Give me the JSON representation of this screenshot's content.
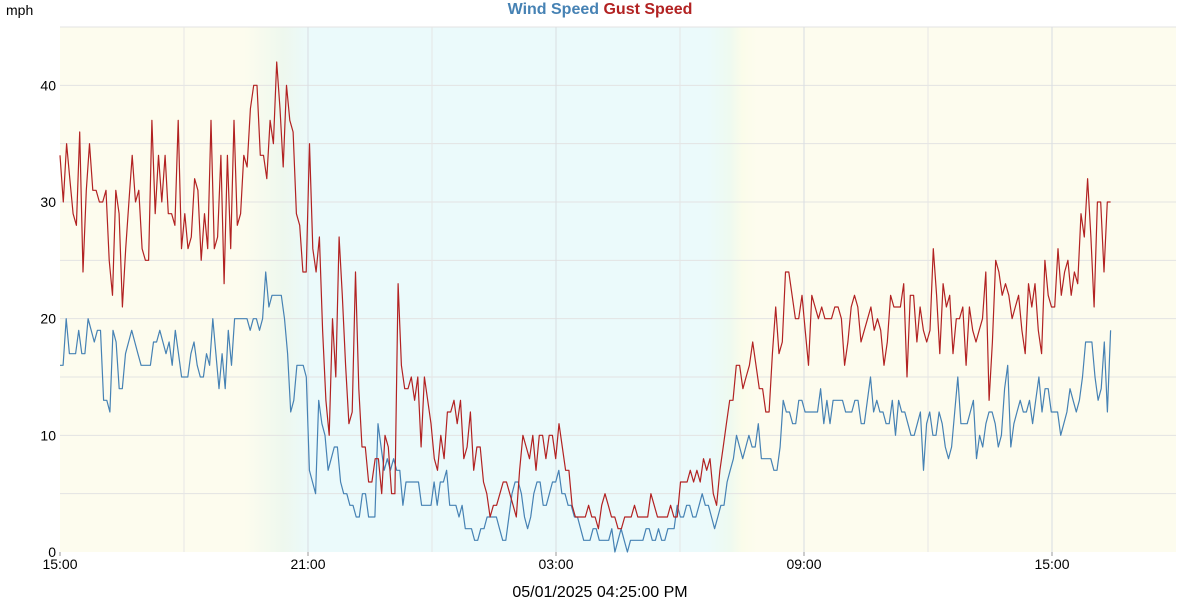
{
  "chart_data": {
    "type": "line",
    "legend": "top-center",
    "ylabel": "mph",
    "footer": "05/01/2025 04:25:00 PM",
    "x_range_hours": [
      0,
      27
    ],
    "ylim": [
      0,
      45
    ],
    "x_ticks": [
      {
        "h": 0,
        "label": "15:00"
      },
      {
        "h": 6,
        "label": "21:00"
      },
      {
        "h": 12,
        "label": "03:00"
      },
      {
        "h": 18,
        "label": "09:00"
      },
      {
        "h": 24,
        "label": "15:00"
      }
    ],
    "y_ticks": [
      0,
      10,
      20,
      30,
      40
    ],
    "grid": true,
    "series": [
      {
        "name": "Wind Speed",
        "color": "#4682b4",
        "values": [
          16,
          16,
          20,
          17,
          17,
          17,
          19,
          17,
          17,
          20,
          19,
          18,
          19,
          19,
          13,
          13,
          12,
          19,
          18,
          14,
          14,
          17,
          18,
          19,
          18,
          17,
          16,
          16,
          16,
          16,
          18,
          18,
          19,
          18,
          17,
          18,
          16,
          19,
          17,
          15,
          15,
          15,
          17,
          18,
          16,
          15,
          15,
          17,
          16,
          20,
          17,
          14,
          17,
          14,
          19,
          16,
          20,
          20,
          20,
          20,
          20,
          19,
          20,
          20,
          19,
          20,
          24,
          21,
          22,
          22,
          22,
          22,
          20,
          17,
          12,
          13,
          16,
          16,
          16,
          15,
          7,
          6,
          5,
          13,
          11,
          10,
          7,
          8,
          9,
          9,
          6,
          5,
          5,
          4,
          4,
          3,
          3,
          5,
          5,
          3,
          3,
          3,
          11,
          9,
          7,
          8,
          7,
          8,
          7,
          7,
          4,
          6,
          6,
          6,
          6,
          6,
          4,
          4,
          4,
          4,
          6,
          4,
          6,
          6,
          7,
          4,
          4,
          4,
          3,
          4,
          2,
          2,
          2,
          1,
          1,
          2,
          2,
          3,
          3,
          3,
          3,
          2,
          1,
          1,
          3,
          5,
          6,
          6,
          5,
          3,
          2,
          3,
          5,
          6,
          6,
          4,
          4,
          5,
          6,
          6,
          7,
          5,
          5,
          4,
          4,
          3,
          3,
          2,
          1,
          1,
          1,
          2,
          2,
          1,
          1,
          1,
          1,
          2,
          0,
          1,
          2,
          1,
          0,
          1,
          1,
          1,
          1,
          1,
          2,
          2,
          1,
          1,
          2,
          1,
          1,
          2,
          2,
          2,
          4,
          3,
          3,
          4,
          4,
          3,
          3,
          4,
          5,
          4,
          4,
          3,
          2,
          3,
          4,
          4,
          6,
          7,
          8,
          10,
          9,
          8,
          9,
          10,
          9,
          9,
          11,
          8,
          8,
          8,
          8,
          7,
          7,
          9,
          13,
          12,
          12,
          11,
          11,
          13,
          13,
          12,
          12,
          12,
          12,
          12,
          14,
          11,
          13,
          11,
          13,
          13,
          13,
          13,
          12,
          12,
          12,
          13,
          13,
          11,
          11,
          13,
          15,
          12,
          13,
          12,
          12,
          11,
          11,
          13,
          10,
          13,
          12,
          12,
          11,
          10,
          10,
          11,
          12,
          7,
          11,
          12,
          10,
          10,
          12,
          11,
          9,
          8,
          9,
          12,
          15,
          11,
          11,
          11,
          12,
          13,
          8,
          10,
          9,
          11,
          12,
          12,
          11,
          9,
          10,
          14,
          16,
          9,
          11,
          12,
          13,
          12,
          12,
          13,
          11,
          13,
          15,
          12,
          14,
          14,
          12,
          12,
          12,
          10,
          11,
          12,
          14,
          13,
          12,
          13,
          15,
          18,
          18,
          18,
          15,
          13,
          14,
          18,
          12,
          19
        ]
      },
      {
        "name": "Gust Speed",
        "color": "#b22222",
        "values": [
          34,
          30,
          35,
          32,
          29,
          28,
          36,
          24,
          31,
          35,
          31,
          31,
          30,
          30,
          31,
          25,
          22,
          31,
          29,
          21,
          26,
          30,
          34,
          30,
          31,
          26,
          25,
          25,
          37,
          29,
          34,
          30,
          34,
          29,
          29,
          28,
          37,
          26,
          29,
          26,
          27,
          32,
          31,
          25,
          29,
          26,
          37,
          26,
          27,
          34,
          23,
          34,
          26,
          37,
          28,
          29,
          34,
          33,
          38,
          40,
          40,
          34,
          34,
          32,
          37,
          35,
          42,
          38,
          33,
          40,
          37,
          36,
          29,
          28,
          24,
          24,
          35,
          26,
          24,
          27,
          19,
          13,
          10,
          20,
          15,
          27,
          22,
          16,
          11,
          12,
          24,
          14,
          9,
          9,
          6,
          6,
          8,
          8,
          5,
          10,
          9,
          5,
          5,
          23,
          16,
          14,
          14,
          15,
          13,
          15,
          9,
          15,
          13,
          11,
          8,
          7,
          10,
          8,
          12,
          12,
          13,
          11,
          13,
          8,
          9,
          12,
          7,
          9,
          9,
          6,
          5,
          3,
          4,
          4,
          5,
          6,
          6,
          5,
          4,
          3,
          7,
          10,
          9,
          8,
          10,
          7,
          10,
          10,
          8,
          10,
          10,
          8,
          11,
          9,
          7,
          7,
          4,
          3,
          3,
          3,
          3,
          4,
          3,
          3,
          2,
          4,
          5,
          4,
          3,
          3,
          2,
          2,
          3,
          3,
          3,
          4,
          3,
          3,
          3,
          3,
          5,
          4,
          3,
          3,
          3,
          3,
          4,
          3,
          3,
          6,
          6,
          6,
          7,
          6,
          7,
          6,
          8,
          7,
          8,
          5,
          4,
          7,
          9,
          11,
          13,
          13,
          16,
          16,
          14,
          15,
          16,
          18,
          16,
          14,
          14,
          12,
          12,
          17,
          21,
          17,
          18,
          24,
          24,
          22,
          20,
          20,
          22,
          19,
          16,
          22,
          21,
          20,
          21,
          20,
          20,
          20,
          21,
          21,
          20,
          16,
          18,
          21,
          22,
          21,
          18,
          19,
          20,
          21,
          19,
          20,
          19,
          16,
          18,
          22,
          21,
          21,
          21,
          23,
          15,
          22,
          22,
          18,
          21,
          19,
          18,
          19,
          26,
          22,
          17,
          23,
          21,
          22,
          17,
          20,
          20,
          21,
          16,
          21,
          19,
          18,
          19,
          20,
          24,
          13,
          18,
          25,
          24,
          22,
          23,
          22,
          20,
          21,
          22,
          19,
          17,
          23,
          21,
          23,
          19,
          17,
          25,
          22,
          21,
          21,
          26,
          22,
          24,
          25,
          22,
          24,
          23,
          29,
          27,
          32,
          27,
          21,
          30,
          30,
          24,
          30,
          30
        ]
      }
    ]
  }
}
